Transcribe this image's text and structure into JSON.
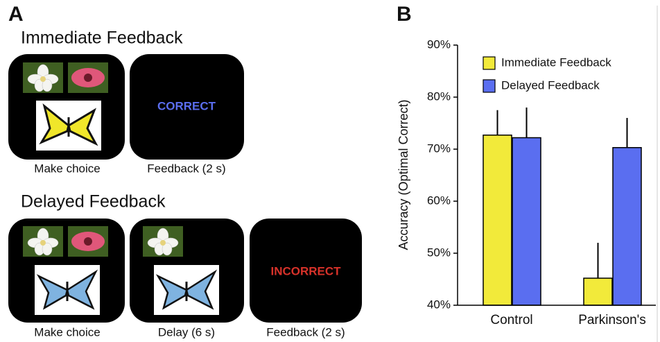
{
  "panel_a": {
    "label": "A",
    "immediate": {
      "title": "Immediate Feedback",
      "captions": [
        "Make choice",
        "Feedback (2 s)"
      ],
      "feedback": "CORRECT"
    },
    "delayed": {
      "title": "Delayed Feedback",
      "captions": [
        "Make choice",
        "Delay (6 s)",
        "Feedback (2 s)"
      ],
      "feedback": "INCORRECT"
    }
  },
  "chart_data": {
    "type": "bar",
    "panel_label": "B",
    "y_label": "Accuracy (Optimal Correct)",
    "categories": [
      "Control",
      "Parkinson's"
    ],
    "series": [
      {
        "name": "Immediate Feedback",
        "color": "#f2ea3a",
        "values": [
          72.7,
          45.2
        ],
        "errors": [
          4.8,
          6.8
        ]
      },
      {
        "name": "Delayed Feedback",
        "color": "#5a6ef0",
        "values": [
          72.2,
          70.3
        ],
        "errors": [
          5.8,
          5.7
        ]
      }
    ],
    "ylim": [
      40,
      90
    ],
    "yticks": [
      {
        "value": 40,
        "label": "40%"
      },
      {
        "value": 50,
        "label": "50%"
      },
      {
        "value": 60,
        "label": "60%"
      },
      {
        "value": 70,
        "label": "70%"
      },
      {
        "value": 80,
        "label": "80%"
      },
      {
        "value": 90,
        "label": "90%"
      }
    ],
    "legend": "top-left"
  }
}
